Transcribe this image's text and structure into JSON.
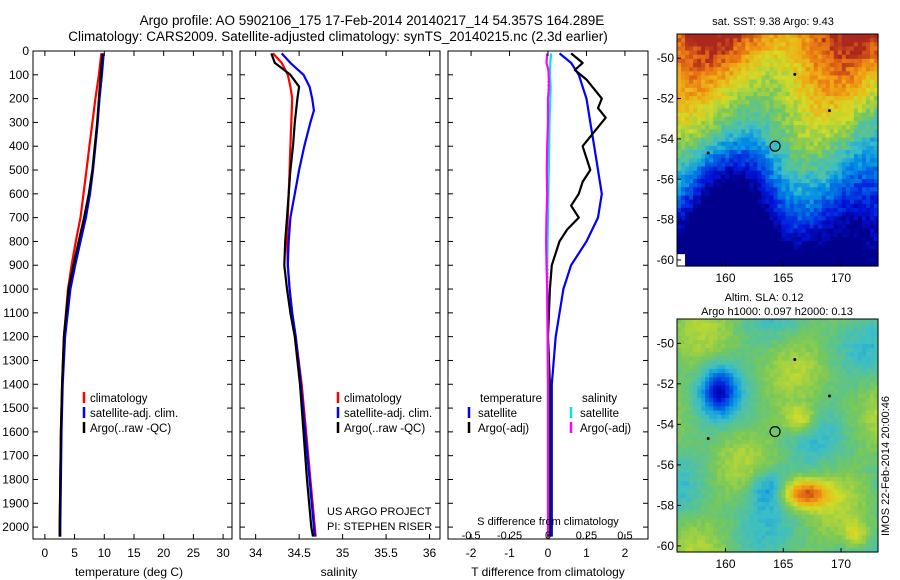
{
  "header": {
    "line1": "Argo profile: AO 5902106_175 17-Feb-2014 20140217_14 54.357S 164.289E",
    "line2": "Climatology: CARS2009. Satellite-adjusted climatology: synTS_20140215.nc (2.3d earlier)"
  },
  "colors": {
    "climatology": "#ff0000",
    "satellite": "#0000ff",
    "argo": "#000000",
    "salinity_satellite": "#00e5e5",
    "salinity_argo": "#ff00ff"
  },
  "depth_ticks": [
    "0",
    "100",
    "200",
    "300",
    "400",
    "500",
    "600",
    "700",
    "800",
    "900",
    "1000",
    "1100",
    "1200",
    "1300",
    "1400",
    "1500",
    "1600",
    "1700",
    "1800",
    "1900",
    "2000"
  ],
  "chart_data": [
    {
      "type": "line",
      "name": "temperature-panel",
      "xlabel": "temperature (deg C)",
      "x_ticks": [
        "0",
        "5",
        "10",
        "15",
        "20",
        "25",
        "30"
      ],
      "xlim": [
        -2,
        31.5
      ],
      "ylim": [
        2050,
        0
      ],
      "legend": [
        "climatology",
        "satellite-adj. clim.",
        "Argo(..raw -QC)"
      ],
      "legend_placement": "lower-middle",
      "series": [
        {
          "name": "climatology",
          "color": "#ff0000",
          "depth": [
            10,
            100,
            200,
            300,
            400,
            500,
            600,
            700,
            800,
            900,
            1000,
            1200,
            1400,
            1600,
            1800,
            2000,
            2040
          ],
          "values": [
            9.5,
            9.1,
            8.5,
            8.0,
            7.5,
            7.0,
            6.5,
            6.0,
            5.2,
            4.5,
            3.9,
            3.2,
            2.9,
            2.7,
            2.6,
            2.5,
            2.5
          ]
        },
        {
          "name": "satellite-adj. clim.",
          "color": "#0000ff",
          "depth": [
            10,
            100,
            200,
            300,
            400,
            500,
            600,
            700,
            800,
            900,
            1000,
            1200,
            1400,
            1600,
            1800,
            2000,
            2040
          ],
          "values": [
            9.9,
            9.6,
            9.2,
            8.9,
            8.5,
            8.1,
            7.6,
            6.9,
            6.0,
            5.1,
            4.3,
            3.4,
            3.0,
            2.8,
            2.7,
            2.6,
            2.6
          ]
        },
        {
          "name": "Argo(..raw -QC)",
          "color": "#000000",
          "depth": [
            10,
            100,
            200,
            300,
            400,
            500,
            600,
            700,
            800,
            900,
            1000,
            1200,
            1400,
            1600,
            1800,
            2000,
            2040
          ],
          "values": [
            9.7,
            9.4,
            9.1,
            8.8,
            8.4,
            8.0,
            7.4,
            6.6,
            5.7,
            4.8,
            4.0,
            3.2,
            2.9,
            2.7,
            2.6,
            2.5,
            2.5
          ]
        }
      ]
    },
    {
      "type": "line",
      "name": "salinity-panel",
      "xlabel": "salinity",
      "x_ticks": [
        "34",
        "34.5",
        "35",
        "35.5",
        "36"
      ],
      "xlim": [
        33.82,
        36.12
      ],
      "ylim": [
        2050,
        0
      ],
      "legend": [
        "climatology",
        "satellite-adj. clim.",
        "Argo(..raw -QC)"
      ],
      "legend_placement": "lower-right",
      "annotation": [
        "US ARGO PROJECT",
        "PI: STEPHEN RISER"
      ],
      "series": [
        {
          "name": "climatology",
          "color": "#ff0000",
          "depth": [
            10,
            50,
            100,
            150,
            200,
            300,
            400,
            500,
            600,
            700,
            800,
            900,
            1000,
            1100,
            1200,
            1400,
            1600,
            1800,
            2000,
            2040
          ],
          "values": [
            34.2,
            34.3,
            34.37,
            34.4,
            34.42,
            34.41,
            34.4,
            34.39,
            34.38,
            34.37,
            34.36,
            34.37,
            34.39,
            34.42,
            34.46,
            34.53,
            34.58,
            34.63,
            34.68,
            34.69
          ]
        },
        {
          "name": "satellite-adj. clim.",
          "color": "#0000ff",
          "depth": [
            10,
            50,
            100,
            150,
            200,
            250,
            300,
            400,
            500,
            600,
            700,
            800,
            900,
            1000,
            1100,
            1200,
            1400,
            1600,
            1800,
            2000,
            2040
          ],
          "values": [
            34.3,
            34.4,
            34.55,
            34.62,
            34.65,
            34.67,
            34.63,
            34.56,
            34.5,
            34.45,
            34.4,
            34.38,
            34.37,
            34.39,
            34.42,
            34.46,
            34.52,
            34.57,
            34.62,
            34.67,
            34.68
          ]
        },
        {
          "name": "Argo(..raw -QC)",
          "color": "#000000",
          "depth": [
            10,
            50,
            100,
            150,
            200,
            300,
            400,
            500,
            600,
            700,
            800,
            900,
            1000,
            1100,
            1200,
            1400,
            1600,
            1800,
            2000,
            2040
          ],
          "values": [
            34.18,
            34.22,
            34.4,
            34.5,
            34.48,
            34.45,
            34.43,
            34.4,
            34.38,
            34.36,
            34.34,
            34.33,
            34.36,
            34.4,
            34.45,
            34.51,
            34.55,
            34.59,
            34.64,
            34.66
          ]
        }
      ]
    },
    {
      "type": "line",
      "name": "difference-panel",
      "xlabel": "T difference from climatology",
      "xlabel_top": "S difference from climatology",
      "x_ticks": [
        "-2",
        "-1",
        "0",
        "1",
        "2"
      ],
      "x_ticks_top": [
        "-0.5",
        "-0.25",
        "0",
        "0.25",
        "0.5"
      ],
      "xlim": [
        -2.6,
        2.6
      ],
      "ylim": [
        2050,
        0
      ],
      "legend_groups": [
        {
          "title": "temperature",
          "items": [
            "satellite",
            "Argo(-adj)"
          ]
        },
        {
          "title": "salinity",
          "items": [
            "satellite",
            "Argo(-adj)"
          ]
        }
      ],
      "series": [
        {
          "name": "temperature satellite",
          "color": "#0000ff",
          "depth": [
            10,
            50,
            100,
            150,
            200,
            300,
            400,
            500,
            600,
            700,
            800,
            900,
            1000,
            1200,
            1400,
            1600,
            1800,
            2000,
            2040
          ],
          "values": [
            0.3,
            0.6,
            0.8,
            0.9,
            1.0,
            1.1,
            1.2,
            1.3,
            1.4,
            1.3,
            1.0,
            0.6,
            0.4,
            0.2,
            0.1,
            0.1,
            0.1,
            0.1,
            0.1
          ]
        },
        {
          "name": "temperature Argo(-adj)",
          "color": "#000000",
          "depth": [
            10,
            50,
            80,
            120,
            160,
            200,
            240,
            280,
            320,
            360,
            400,
            450,
            500,
            550,
            600,
            650,
            700,
            750,
            800,
            900,
            1000,
            1200,
            1400,
            1600,
            1800,
            2000,
            2040
          ],
          "values": [
            0.6,
            0.9,
            0.7,
            1.0,
            1.2,
            1.4,
            1.3,
            1.5,
            1.3,
            1.1,
            0.9,
            1.0,
            1.1,
            0.9,
            0.8,
            0.6,
            0.8,
            0.5,
            0.3,
            0.1,
            0.05,
            0.0,
            0.05,
            0.05,
            0.05,
            0.05,
            0.05
          ]
        },
        {
          "name": "salinity satellite",
          "color": "#00e5e5",
          "depth": [
            10,
            50,
            100,
            150,
            200,
            300,
            400,
            500,
            600,
            700,
            800,
            900,
            1000,
            1200,
            1400,
            1600,
            1800,
            2000,
            2040
          ],
          "values": [
            0.08,
            0.06,
            0.05,
            0.07,
            0.06,
            0.04,
            0.03,
            0.02,
            0.01,
            0.0,
            -0.01,
            -0.02,
            -0.02,
            -0.01,
            0.0,
            0.0,
            0.0,
            0.0,
            0.0
          ]
        },
        {
          "name": "salinity Argo(-adj)",
          "color": "#ff00ff",
          "depth": [
            10,
            50,
            80,
            120,
            160,
            200,
            300,
            400,
            500,
            600,
            700,
            800,
            900,
            1000,
            1200,
            1400,
            1600,
            1800,
            2000,
            2040
          ],
          "values": [
            -0.02,
            -0.04,
            0.01,
            0.02,
            0.02,
            0.0,
            0.0,
            -0.02,
            -0.03,
            -0.02,
            -0.04,
            -0.05,
            -0.04,
            -0.02,
            -0.01,
            0.0,
            0.0,
            0.0,
            0.0,
            0.0
          ]
        }
      ]
    },
    {
      "type": "heatmap",
      "name": "sst-map",
      "title": "sat. SST: 9.38 Argo: 9.43",
      "x_ticks": [
        "160",
        "165",
        "170"
      ],
      "y_ticks": [
        "-50",
        "-52",
        "-54",
        "-56",
        "-58",
        "-60"
      ],
      "xlim": [
        155.8,
        173.2
      ],
      "ylim": [
        -60.3,
        -48.8
      ],
      "float_position": [
        164.289,
        -54.357
      ]
    },
    {
      "type": "heatmap",
      "name": "sla-map",
      "title_line1": "Altim. SLA: 0.12",
      "title_line2": "Argo h1000: 0.097 h2000: 0.13",
      "x_ticks": [
        "160",
        "165",
        "170"
      ],
      "y_ticks": [
        "-50",
        "-52",
        "-54",
        "-56",
        "-58",
        "-60"
      ],
      "xlim": [
        155.8,
        173.2
      ],
      "ylim": [
        -60.3,
        -48.8
      ],
      "float_position": [
        164.289,
        -54.357
      ],
      "side_label": "IMOS 22-Feb-2014 20:00:46"
    }
  ]
}
